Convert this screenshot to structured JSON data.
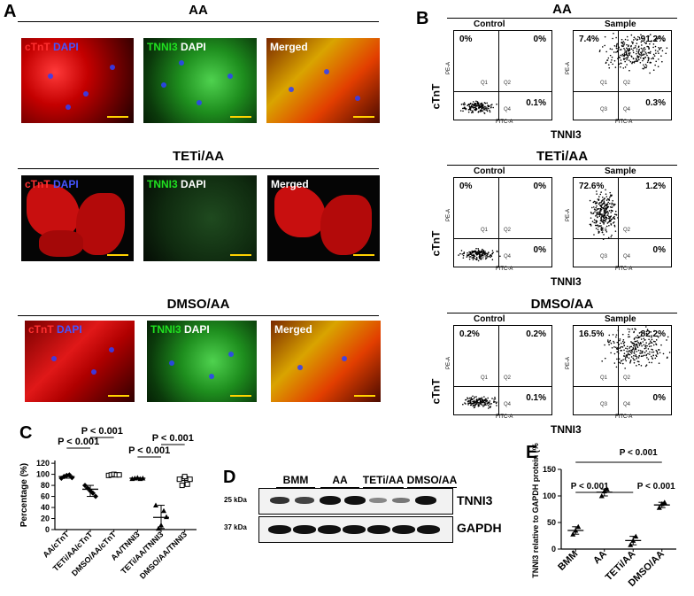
{
  "panels": {
    "A": "A",
    "B": "B",
    "C": "C",
    "D": "D",
    "E": "E"
  },
  "panelA": {
    "groups": [
      {
        "title": "AA",
        "labels": {
          "red": "cTnT",
          "dapi": "DAPI",
          "green": "TNNI3",
          "dapi2": "DAPI",
          "merged": "Merged"
        }
      },
      {
        "title": "TETi/AA",
        "labels": {
          "red": "cTnT",
          "dapi": "DAPI",
          "green": "TNNI3",
          "dapi2": "DAPI",
          "merged": "Merged"
        }
      },
      {
        "title": "DMSO/AA",
        "labels": {
          "red": "cTnT",
          "dapi": "DAPI",
          "green": "TNNI3",
          "dapi2": "DAPI",
          "merged": "Merged"
        }
      }
    ]
  },
  "panelB": {
    "groups": [
      {
        "title": "AA",
        "control_label": "Control",
        "sample_label": "Sample",
        "control": {
          "q1": "0%",
          "q2": "0%",
          "q4": "0.1%"
        },
        "sample": {
          "q1": "7.4%",
          "q2": "91.2%",
          "q4": "0.3%"
        }
      },
      {
        "title": "TETi/AA",
        "control_label": "Control",
        "sample_label": "Sample",
        "control": {
          "q1": "0%",
          "q2": "0%",
          "q4": "0%"
        },
        "sample": {
          "q1": "72.6%",
          "q2": "1.2%",
          "q4": "0%"
        }
      },
      {
        "title": "DMSO/AA",
        "control_label": "Control",
        "sample_label": "Sample",
        "control": {
          "q1": "0.2%",
          "q2": "0.2%",
          "q4": "0.1%"
        },
        "sample": {
          "q1": "16.5%",
          "q2": "82.2%",
          "q4": "0%"
        }
      }
    ],
    "y_axis": "cTnT",
    "x_axis": "TNNI3",
    "gate_labels": {
      "q1": "Q1",
      "q2": "Q2",
      "q3": "Q3",
      "q4": "Q4"
    },
    "fitc": "FITC-A",
    "pe": "PE-A"
  },
  "chart_data": [
    {
      "type": "scatter",
      "panel": "C",
      "ylabel": "Percentage (%)",
      "ylim": [
        0,
        125
      ],
      "yticks": [
        0,
        20,
        40,
        60,
        80,
        100,
        120
      ],
      "categories": [
        "AA/cTnT",
        "TETi/AA/cTnT",
        "DMSO/AA/cTnT",
        "AA/TNNI3",
        "TETi/AA/TNNI3",
        "DMSO/AA/TNNI3"
      ],
      "means": [
        96,
        73,
        99,
        93,
        22,
        89
      ],
      "points": [
        [
          93,
          96,
          98,
          99,
          94
        ],
        [
          80,
          75,
          70,
          66,
          60
        ],
        [
          98,
          99,
          100,
          99,
          99
        ],
        [
          92,
          93,
          94,
          92,
          93
        ],
        [
          44,
          2,
          8,
          34,
          23
        ],
        [
          91,
          80,
          96,
          82,
          91
        ]
      ],
      "annotations": [
        "P < 0.001",
        "P < 0.001",
        "P < 0.001",
        "P < 0.001"
      ]
    },
    {
      "type": "scatter",
      "panel": "E",
      "ylabel": "TNNI3 relative to GAPDH protein (%)",
      "ylim": [
        0,
        150
      ],
      "yticks": [
        0,
        50,
        100,
        150
      ],
      "categories": [
        "BMM",
        "AA",
        "TETi/AA",
        "DMSO/AA"
      ],
      "means": [
        35,
        107,
        16,
        83
      ],
      "points": [
        [
          28,
          35,
          42
        ],
        [
          100,
          109,
          113
        ],
        [
          8,
          16,
          24
        ],
        [
          78,
          85,
          88
        ]
      ],
      "annotations": [
        "P < 0.001",
        "P < 0.001",
        "P < 0.001"
      ]
    }
  ],
  "panelD": {
    "lanes": [
      "BMM",
      "AA",
      "TETi/AA",
      "DMSO/AA"
    ],
    "marker1": "25 kDa",
    "marker2": "37 kDa",
    "gene1": "TNNI3",
    "gene2": "GAPDH"
  },
  "colors": {
    "red": "#ff2020",
    "blue": "#2d3fff",
    "green": "#1ecf1e",
    "white": "#ffffff"
  }
}
